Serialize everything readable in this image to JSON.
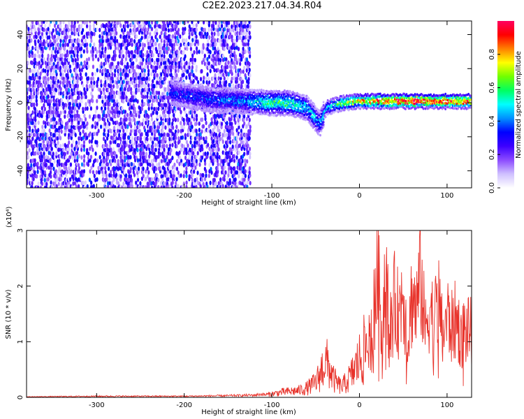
{
  "page_title": "C2E2.2023.217.04.34.R04",
  "chart_data": [
    {
      "type": "heatmap",
      "xlabel": "Height of straight line (km)",
      "ylabel": "Frequency (Hz)",
      "xlim": [
        -380,
        128
      ],
      "ylim": [
        -50,
        48
      ],
      "x_ticks": [
        -300,
        -200,
        -100,
        0,
        100
      ],
      "y_ticks": [
        -40,
        -20,
        0,
        20,
        40
      ],
      "grid": false,
      "colorbar": {
        "label": "Normalized spectral amplitude",
        "range": [
          0,
          1
        ],
        "ticks": [
          "0.0",
          "0.2",
          "0.4",
          "0.6",
          "0.8"
        ],
        "colormap": [
          "#ffffff",
          "#cfc0ff",
          "#8c4bff",
          "#3c00ff",
          "#0000ff",
          "#0090ff",
          "#00ffff",
          "#00ff60",
          "#70ff00",
          "#ffff00",
          "#ff8000",
          "#ff0000",
          "#ff0060"
        ]
      },
      "features": {
        "broadband_region_x": [
          -380,
          -125
        ],
        "narrow_band_ridge": {
          "x": [
            -215,
            -170,
            -130,
            -100,
            -80,
            -60,
            -45,
            -38,
            -20,
            0,
            40,
            80,
            128
          ],
          "center_freq": [
            6,
            2,
            1,
            0,
            0,
            -3,
            -12,
            -3,
            0,
            1,
            1,
            1,
            1
          ],
          "amplitude": [
            0.3,
            0.35,
            0.4,
            0.55,
            0.55,
            0.45,
            0.4,
            0.45,
            0.6,
            0.75,
            0.9,
            0.95,
            0.8
          ]
        }
      }
    },
    {
      "type": "line",
      "xlabel": "Height of straight line (km)",
      "ylabel": "SNR (10 * v/v)",
      "yscale_label": "(x10⁴)",
      "xlim": [
        -380,
        128
      ],
      "ylim": [
        0,
        3
      ],
      "x_ticks": [
        -300,
        -200,
        -100,
        0,
        100
      ],
      "y_ticks": [
        0,
        1,
        2,
        3
      ],
      "grid": false,
      "series": [
        {
          "color": "#e8322a",
          "x": [
            -380,
            -300,
            -200,
            -150,
            -120,
            -100,
            -90,
            -80,
            -70,
            -60,
            -50,
            -45,
            -40,
            -35,
            -30,
            -25,
            -20,
            -10,
            0,
            10,
            15,
            20,
            25,
            30,
            35,
            40,
            45,
            50,
            55,
            60,
            65,
            70,
            75,
            80,
            85,
            90,
            95,
            100,
            105,
            110,
            115,
            120,
            128
          ],
          "values": [
            0.01,
            0.02,
            0.02,
            0.03,
            0.04,
            0.08,
            0.12,
            0.14,
            0.16,
            0.22,
            0.35,
            0.55,
            0.85,
            0.75,
            0.45,
            0.32,
            0.25,
            0.5,
            0.9,
            1.3,
            1.6,
            2.9,
            2.0,
            2.8,
            1.6,
            2.2,
            1.9,
            2.6,
            1.2,
            2.4,
            2.0,
            2.9,
            1.5,
            2.2,
            1.7,
            2.3,
            1.4,
            1.9,
            1.6,
            1.8,
            1.5,
            1.55,
            1.5
          ]
        }
      ]
    }
  ]
}
